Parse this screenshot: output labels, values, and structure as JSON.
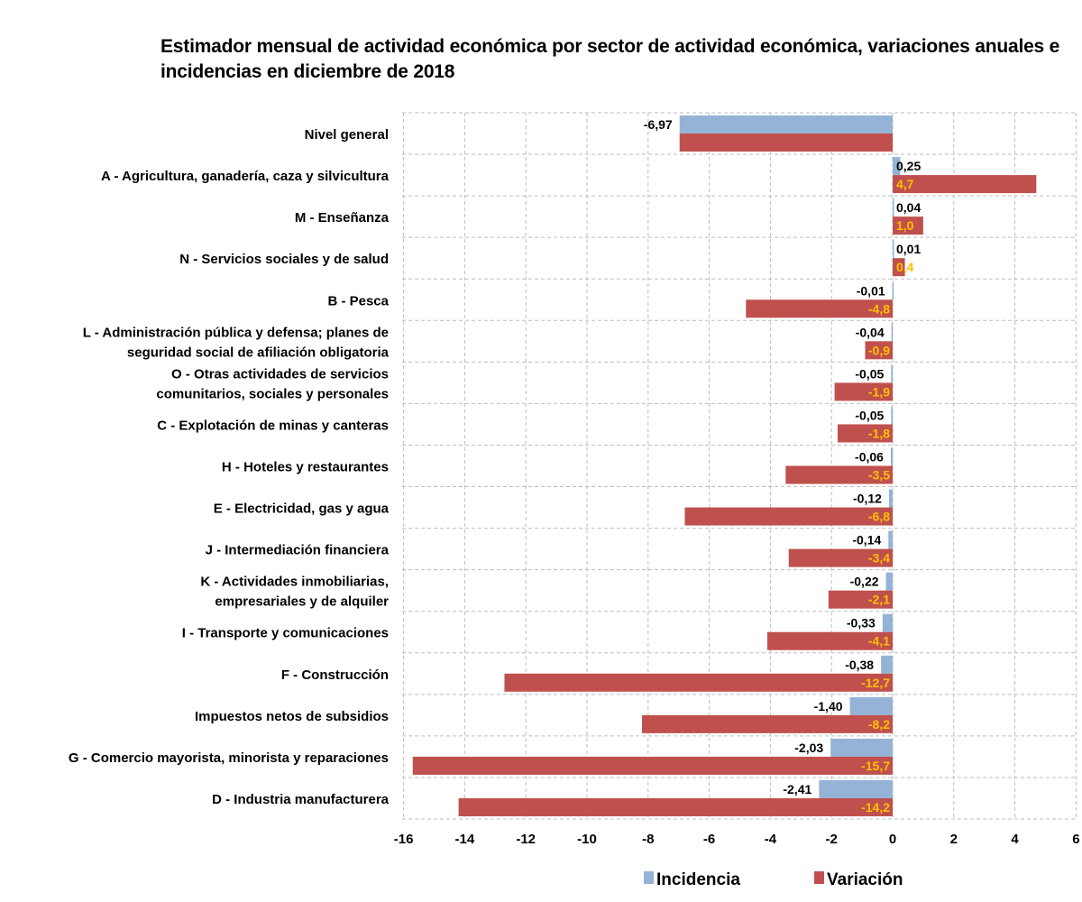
{
  "chart_data": {
    "type": "bar",
    "orientation": "horizontal",
    "title_lines": [
      "Estimador mensual de actividad económica por sector de actividad económica, variaciones anuales e",
      "incidencias en diciembre de 2018"
    ],
    "categories": [
      [
        "Nivel general"
      ],
      [
        "A -  Agricultura, ganadería, caza y silvicultura"
      ],
      [
        "M - Enseñanza"
      ],
      [
        "N - Servicios sociales y de salud"
      ],
      [
        "B - Pesca"
      ],
      [
        "L - Administración pública y defensa; planes de",
        "seguridad social de afiliación obligatoria"
      ],
      [
        "O - Otras actividades de servicios",
        "comunitarios, sociales y personales"
      ],
      [
        "C - Explotación de minas y canteras"
      ],
      [
        "H - Hoteles y restaurantes"
      ],
      [
        "E - Electricidad, gas y agua"
      ],
      [
        "J - Intermediación financiera"
      ],
      [
        "K - Actividades inmobiliarias,",
        "empresariales y de alquiler"
      ],
      [
        "I - Transporte y comunicaciones"
      ],
      [
        "F - Construcción"
      ],
      [
        "Impuestos netos de subsidios"
      ],
      [
        "G - Comercio mayorista, minorista y reparaciones"
      ],
      [
        "D - Industria manufacturera"
      ]
    ],
    "series": [
      {
        "name": "Incidencia",
        "color": "#95B3D7",
        "label_color": "#000000",
        "values": [
          -6.97,
          0.25,
          0.04,
          0.01,
          -0.01,
          -0.04,
          -0.05,
          -0.05,
          -0.06,
          -0.12,
          -0.14,
          -0.22,
          -0.33,
          -0.38,
          -1.4,
          -2.03,
          -2.41
        ],
        "labels": [
          "-6,97",
          "0,25",
          "0,04",
          "0,01",
          "-0,01",
          "-0,04",
          "-0,05",
          "-0,05",
          "-0,06",
          "-0,12",
          "-0,14",
          "-0,22",
          "-0,33",
          "-0,38",
          "-1,40",
          "-2,03",
          "-2,41"
        ]
      },
      {
        "name": "Variación",
        "color": "#C0504D",
        "label_color": "#FFC000",
        "values": [
          -6.97,
          4.7,
          1.0,
          0.4,
          -4.8,
          -0.9,
          -1.9,
          -1.8,
          -3.5,
          -6.8,
          -3.4,
          -2.1,
          -4.1,
          -12.7,
          -8.2,
          -15.7,
          -14.2
        ],
        "labels": [
          "",
          "4,7",
          "1,0",
          "0,4",
          "-4,8",
          "-0,9",
          "-1,9",
          "-1,8",
          "-3,5",
          "-6,8",
          "-3,4",
          "-2,1",
          "-4,1",
          "-12,7",
          "-8,2",
          "-15,7",
          "-14,2"
        ]
      }
    ],
    "xlim": [
      -16,
      6
    ],
    "xticks": [
      -16,
      -14,
      -12,
      -10,
      -8,
      -6,
      -4,
      -2,
      0,
      2,
      4,
      6
    ],
    "grid": true,
    "legend_position": "bottom"
  }
}
